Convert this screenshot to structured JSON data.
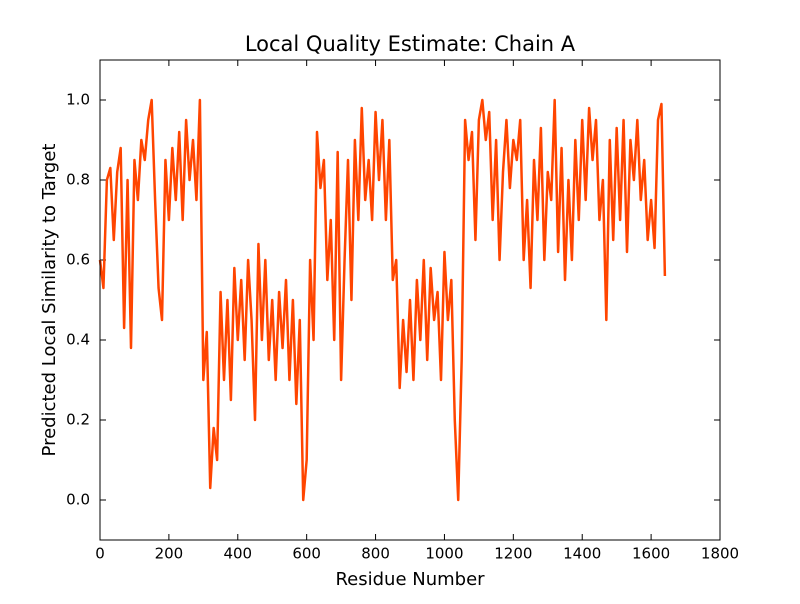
{
  "chart_data": {
    "type": "line",
    "title": "Local Quality Estimate: Chain A",
    "x_label": "Residue Number",
    "y_label": "Predicted Local Similarity to Target",
    "color": "#ff4500",
    "x": [
      0,
      10,
      20,
      30,
      40,
      50,
      60,
      70,
      80,
      90,
      100,
      110,
      120,
      130,
      140,
      150,
      160,
      170,
      180,
      190,
      200,
      210,
      220,
      230,
      240,
      250,
      260,
      270,
      280,
      290,
      300,
      310,
      320,
      330,
      340,
      350,
      360,
      370,
      380,
      390,
      400,
      410,
      420,
      430,
      440,
      450,
      460,
      470,
      480,
      490,
      500,
      510,
      520,
      530,
      540,
      550,
      560,
      570,
      580,
      590,
      600,
      610,
      620,
      630,
      640,
      650,
      660,
      670,
      680,
      690,
      700,
      710,
      720,
      730,
      740,
      750,
      760,
      770,
      780,
      790,
      800,
      810,
      820,
      830,
      840,
      850,
      860,
      870,
      880,
      890,
      900,
      910,
      920,
      930,
      940,
      950,
      960,
      970,
      980,
      990,
      1000,
      1010,
      1020,
      1030,
      1040,
      1050,
      1060,
      1070,
      1080,
      1090,
      1100,
      1110,
      1120,
      1130,
      1140,
      1150,
      1160,
      1170,
      1180,
      1190,
      1200,
      1210,
      1220,
      1230,
      1240,
      1250,
      1260,
      1270,
      1280,
      1290,
      1300,
      1310,
      1320,
      1330,
      1340,
      1350,
      1360,
      1370,
      1380,
      1390,
      1400,
      1410,
      1420,
      1430,
      1440,
      1450,
      1460,
      1470,
      1480,
      1490,
      1500,
      1510,
      1520,
      1530,
      1540,
      1550,
      1560,
      1570,
      1580,
      1590,
      1600,
      1610,
      1620,
      1630,
      1640
    ],
    "values": [
      0.6,
      0.53,
      0.8,
      0.83,
      0.65,
      0.82,
      0.88,
      0.43,
      0.8,
      0.38,
      0.85,
      0.75,
      0.9,
      0.85,
      0.95,
      1.0,
      0.75,
      0.53,
      0.45,
      0.85,
      0.7,
      0.88,
      0.75,
      0.92,
      0.7,
      0.95,
      0.8,
      0.9,
      0.75,
      1.0,
      0.3,
      0.42,
      0.03,
      0.18,
      0.1,
      0.52,
      0.3,
      0.5,
      0.25,
      0.58,
      0.4,
      0.55,
      0.35,
      0.6,
      0.45,
      0.2,
      0.64,
      0.4,
      0.6,
      0.35,
      0.5,
      0.3,
      0.52,
      0.38,
      0.55,
      0.3,
      0.5,
      0.24,
      0.45,
      0.0,
      0.1,
      0.6,
      0.4,
      0.92,
      0.78,
      0.85,
      0.55,
      0.7,
      0.4,
      0.87,
      0.3,
      0.6,
      0.85,
      0.5,
      0.9,
      0.7,
      0.98,
      0.75,
      0.85,
      0.7,
      0.97,
      0.8,
      0.95,
      0.7,
      0.9,
      0.55,
      0.6,
      0.28,
      0.45,
      0.32,
      0.5,
      0.3,
      0.55,
      0.4,
      0.6,
      0.35,
      0.58,
      0.45,
      0.52,
      0.3,
      0.62,
      0.45,
      0.55,
      0.2,
      0.0,
      0.35,
      0.95,
      0.85,
      0.92,
      0.65,
      0.95,
      1.0,
      0.9,
      0.97,
      0.7,
      0.9,
      0.6,
      0.82,
      0.95,
      0.78,
      0.9,
      0.85,
      0.95,
      0.6,
      0.75,
      0.53,
      0.85,
      0.7,
      0.93,
      0.6,
      0.82,
      0.75,
      1.0,
      0.62,
      0.88,
      0.55,
      0.8,
      0.6,
      0.9,
      0.7,
      0.95,
      0.75,
      0.98,
      0.85,
      0.95,
      0.7,
      0.8,
      0.45,
      0.9,
      0.65,
      0.93,
      0.7,
      0.95,
      0.62,
      0.9,
      0.8,
      0.95,
      0.75,
      0.85,
      0.65,
      0.75,
      0.63,
      0.95,
      0.99,
      0.56
    ],
    "xlim": [
      0,
      1800
    ],
    "xticks": [
      0,
      200,
      400,
      600,
      800,
      1000,
      1200,
      1400,
      1600,
      1800
    ],
    "ylim": [
      -0.1,
      1.1
    ],
    "yticks": [
      {
        "value": 0,
        "label": "0.0"
      },
      0.2,
      0.4,
      0.6,
      0.8,
      {
        "value": 1,
        "label": "1.0"
      }
    ],
    "grid": false
  }
}
